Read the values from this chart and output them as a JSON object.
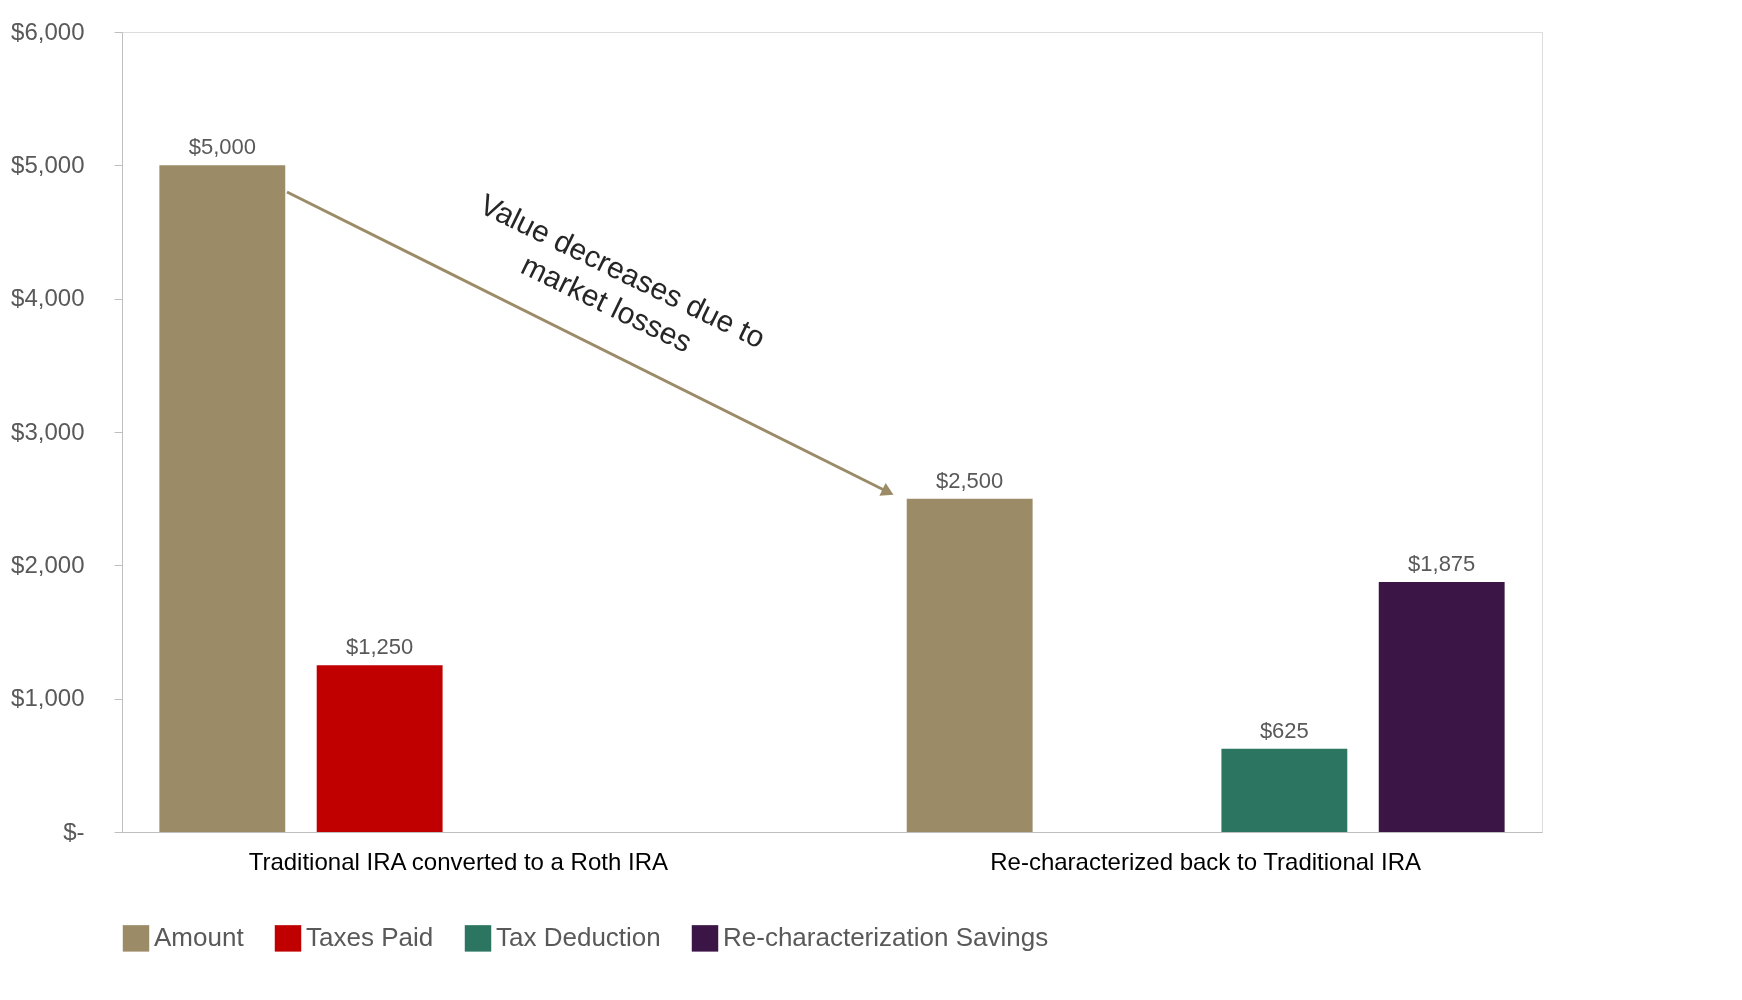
{
  "chart_data": {
    "type": "bar",
    "categories": [
      "Traditional IRA converted to a Roth IRA",
      "Re-characterized back to Traditional IRA"
    ],
    "series": [
      {
        "name": "Amount",
        "color": "#9c8b67",
        "values": [
          5000,
          2500
        ],
        "value_labels": [
          "$5,000",
          "$2,500"
        ]
      },
      {
        "name": "Taxes Paid",
        "color": "#c00000",
        "values": [
          1250,
          null
        ],
        "value_labels": [
          "$1,250",
          null
        ]
      },
      {
        "name": "Tax Deduction",
        "color": "#2b7561",
        "values": [
          null,
          625
        ],
        "value_labels": [
          null,
          "$625"
        ]
      },
      {
        "name": "Re-characterization Savings",
        "color": "#3b1545",
        "values": [
          null,
          1875
        ],
        "value_labels": [
          null,
          "$1,875"
        ]
      }
    ],
    "ylim": [
      0,
      6000
    ],
    "yticks": [
      {
        "value": 0,
        "label": "$-"
      },
      {
        "value": 1000,
        "label": "$1,000"
      },
      {
        "value": 2000,
        "label": "$2,000"
      },
      {
        "value": 3000,
        "label": "$3,000"
      },
      {
        "value": 4000,
        "label": "$4,000"
      },
      {
        "value": 5000,
        "label": "$5,000"
      },
      {
        "value": 6000,
        "label": "$6,000"
      }
    ],
    "grid": false,
    "legend": "bottom",
    "annotations": [
      "Value decreases due to market losses"
    ]
  }
}
